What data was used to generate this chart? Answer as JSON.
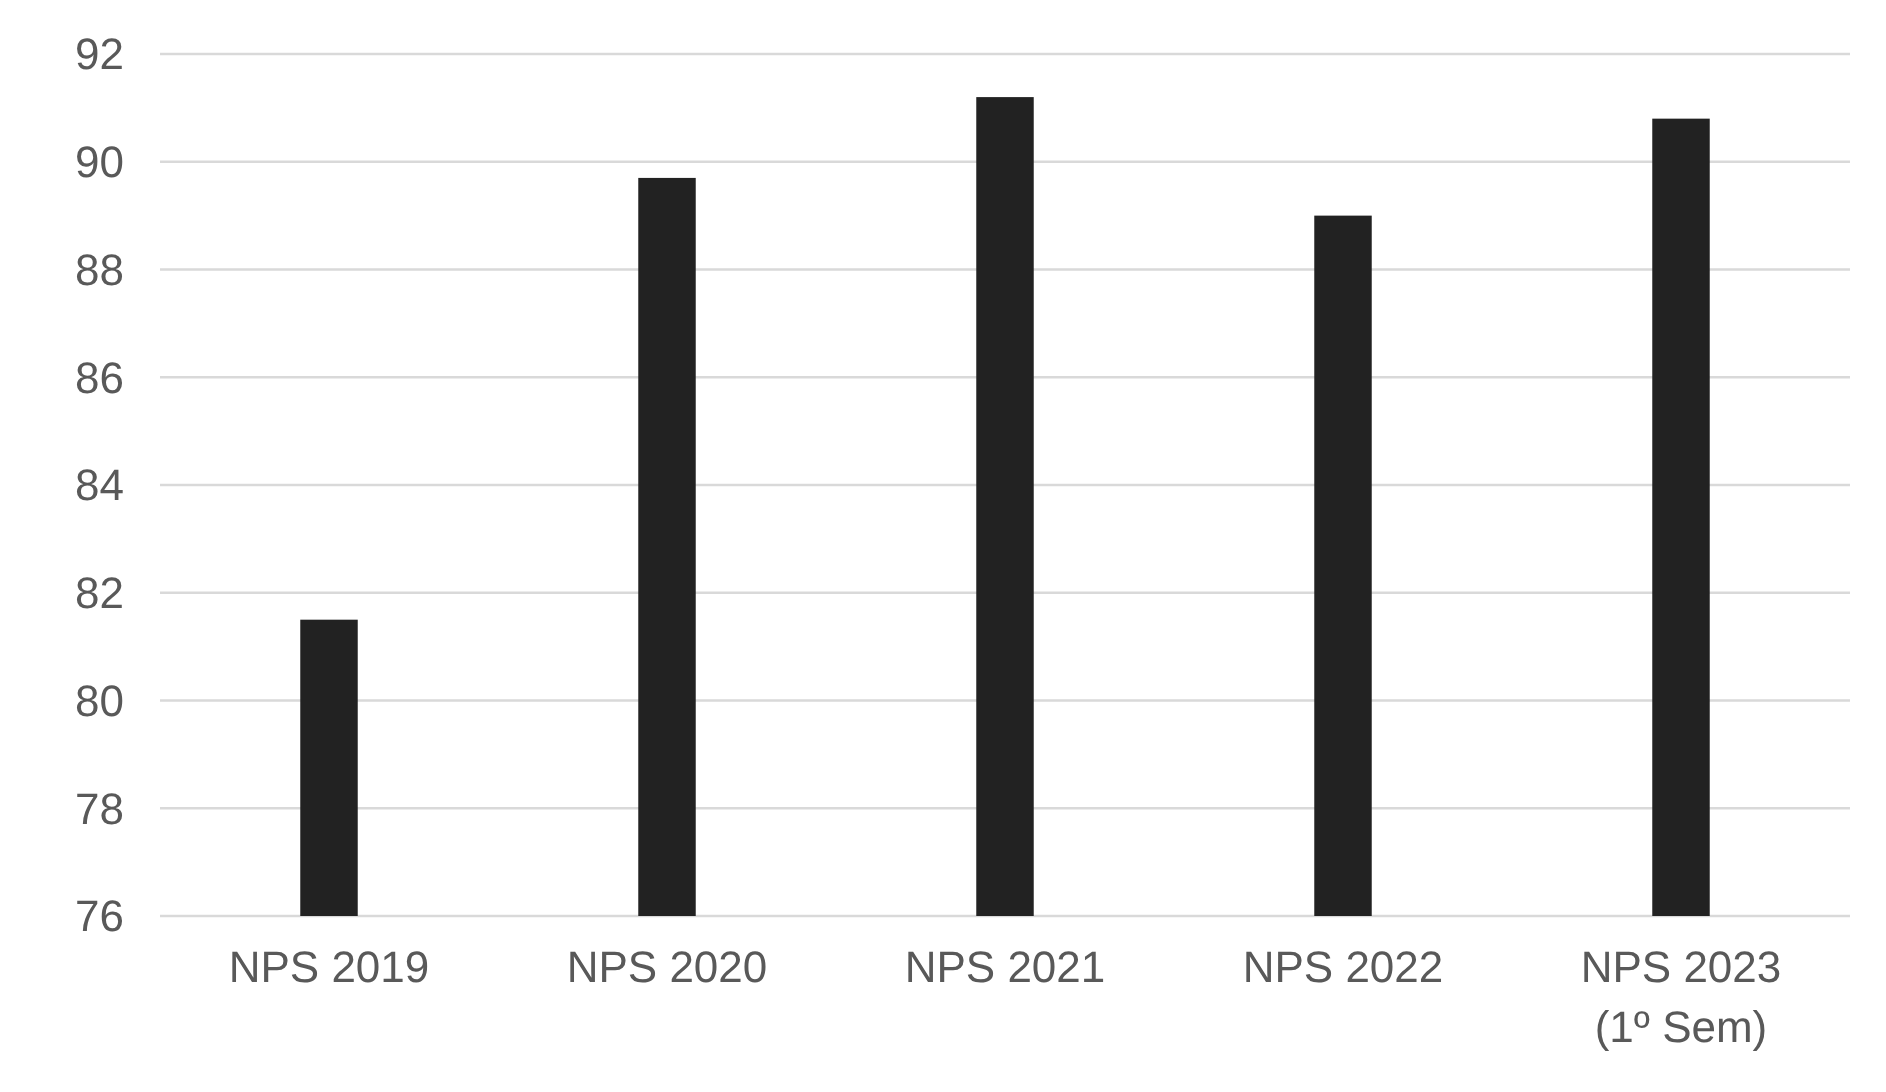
{
  "chart_data": {
    "type": "bar",
    "categories": [
      "NPS 2019",
      "NPS 2020",
      "NPS 2021",
      "NPS 2022",
      "NPS 2023 (1º Sem)"
    ],
    "values": [
      81.5,
      89.7,
      91.2,
      89.0,
      90.8
    ],
    "color": "#222222",
    "ylim": [
      76,
      92
    ],
    "yticks": [
      76,
      78,
      80,
      82,
      84,
      86,
      88,
      90,
      92
    ],
    "grid": true
  }
}
